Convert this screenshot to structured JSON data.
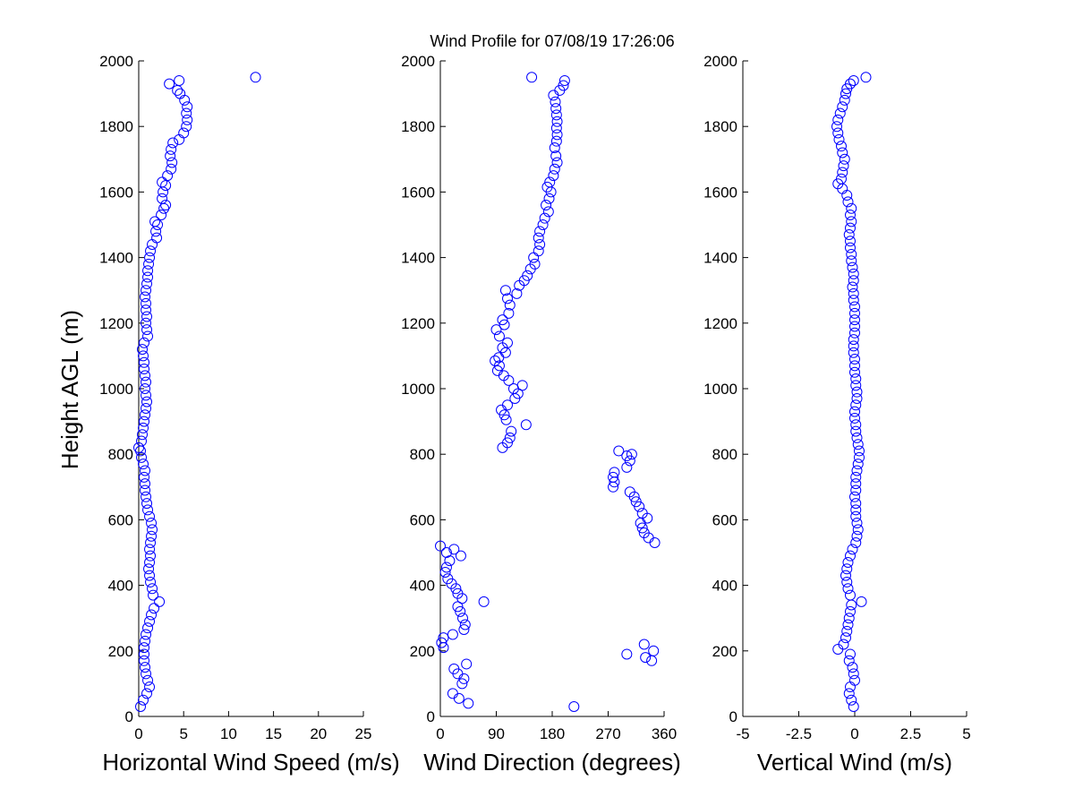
{
  "figure": {
    "title": "Wind Profile for  07/08/19 17:26:06",
    "ylabel": "Height AGL (m)",
    "marker_color": "#0000ff"
  },
  "chart_data": [
    {
      "type": "scatter",
      "xlabel": "Horizontal Wind Speed (m/s)",
      "ylabel": "Height AGL (m)",
      "xlim": [
        0,
        25
      ],
      "ylim": [
        0,
        2000
      ],
      "xticks": [
        0,
        5,
        10,
        15,
        20,
        25
      ],
      "xtick_labels": [
        "0",
        "5",
        "10",
        "15",
        "20",
        "25"
      ],
      "yticks": [
        0,
        200,
        400,
        600,
        800,
        1000,
        1200,
        1400,
        1600,
        1800,
        2000
      ],
      "ytick_labels": [
        "0",
        "200",
        "400",
        "600",
        "800",
        "1000",
        "1200",
        "1400",
        "1600",
        "1800",
        "2000"
      ],
      "points": [
        [
          0.2,
          30
        ],
        [
          0.5,
          50
        ],
        [
          0.9,
          70
        ],
        [
          1.2,
          90
        ],
        [
          1.0,
          110
        ],
        [
          0.8,
          130
        ],
        [
          0.7,
          150
        ],
        [
          0.6,
          170
        ],
        [
          0.6,
          190
        ],
        [
          0.6,
          210
        ],
        [
          0.7,
          230
        ],
        [
          0.8,
          250
        ],
        [
          1.0,
          270
        ],
        [
          1.2,
          290
        ],
        [
          1.4,
          310
        ],
        [
          1.7,
          330
        ],
        [
          2.3,
          350
        ],
        [
          1.6,
          370
        ],
        [
          1.5,
          390
        ],
        [
          1.3,
          410
        ],
        [
          1.2,
          430
        ],
        [
          1.1,
          450
        ],
        [
          1.2,
          470
        ],
        [
          1.3,
          490
        ],
        [
          1.2,
          510
        ],
        [
          1.3,
          530
        ],
        [
          1.4,
          550
        ],
        [
          1.5,
          570
        ],
        [
          1.4,
          590
        ],
        [
          1.2,
          610
        ],
        [
          1.0,
          630
        ],
        [
          0.9,
          650
        ],
        [
          0.8,
          670
        ],
        [
          0.7,
          690
        ],
        [
          0.7,
          710
        ],
        [
          0.6,
          730
        ],
        [
          0.7,
          750
        ],
        [
          0.5,
          770
        ],
        [
          0.3,
          790
        ],
        [
          0.2,
          810
        ],
        [
          0.0,
          820
        ],
        [
          0.3,
          840
        ],
        [
          0.4,
          860
        ],
        [
          0.5,
          880
        ],
        [
          0.6,
          900
        ],
        [
          0.7,
          920
        ],
        [
          0.8,
          940
        ],
        [
          0.9,
          960
        ],
        [
          0.8,
          980
        ],
        [
          0.7,
          1000
        ],
        [
          0.8,
          1020
        ],
        [
          0.7,
          1040
        ],
        [
          0.6,
          1060
        ],
        [
          0.6,
          1080
        ],
        [
          0.5,
          1100
        ],
        [
          0.4,
          1120
        ],
        [
          0.6,
          1140
        ],
        [
          1.0,
          1160
        ],
        [
          0.9,
          1180
        ],
        [
          0.8,
          1200
        ],
        [
          0.9,
          1220
        ],
        [
          0.8,
          1240
        ],
        [
          0.8,
          1260
        ],
        [
          0.7,
          1280
        ],
        [
          0.8,
          1300
        ],
        [
          0.9,
          1320
        ],
        [
          1.0,
          1340
        ],
        [
          1.0,
          1360
        ],
        [
          1.1,
          1380
        ],
        [
          1.2,
          1400
        ],
        [
          1.3,
          1420
        ],
        [
          1.5,
          1440
        ],
        [
          2.0,
          1460
        ],
        [
          1.9,
          1480
        ],
        [
          2.1,
          1500
        ],
        [
          1.8,
          1510
        ],
        [
          2.5,
          1530
        ],
        [
          2.8,
          1550
        ],
        [
          3.0,
          1560
        ],
        [
          2.6,
          1580
        ],
        [
          2.7,
          1600
        ],
        [
          3.0,
          1620
        ],
        [
          2.6,
          1630
        ],
        [
          3.2,
          1650
        ],
        [
          3.6,
          1670
        ],
        [
          3.7,
          1690
        ],
        [
          3.5,
          1710
        ],
        [
          3.6,
          1730
        ],
        [
          3.8,
          1750
        ],
        [
          4.5,
          1760
        ],
        [
          5.0,
          1780
        ],
        [
          5.3,
          1800
        ],
        [
          5.4,
          1820
        ],
        [
          5.3,
          1840
        ],
        [
          5.4,
          1860
        ],
        [
          5.1,
          1880
        ],
        [
          4.6,
          1900
        ],
        [
          4.3,
          1910
        ],
        [
          3.4,
          1930
        ],
        [
          4.5,
          1940
        ],
        [
          13.0,
          1950
        ]
      ]
    },
    {
      "type": "scatter",
      "xlabel": "Wind Direction (degrees)",
      "xlim": [
        0,
        360
      ],
      "ylim": [
        0,
        2000
      ],
      "xticks": [
        0,
        90,
        180,
        270,
        360
      ],
      "xtick_labels": [
        "0",
        "90",
        "180",
        "270",
        "360"
      ],
      "yticks": [
        0,
        200,
        400,
        600,
        800,
        1000,
        1200,
        1400,
        1600,
        1800,
        2000
      ],
      "ytick_labels": [
        "0",
        "200",
        "400",
        "600",
        "800",
        "1000",
        "1200",
        "1400",
        "1600",
        "1800",
        "2000"
      ],
      "points": [
        [
          215,
          30
        ],
        [
          45,
          40
        ],
        [
          30,
          55
        ],
        [
          20,
          70
        ],
        [
          35,
          100
        ],
        [
          38,
          115
        ],
        [
          28,
          130
        ],
        [
          22,
          145
        ],
        [
          42,
          160
        ],
        [
          300,
          190
        ],
        [
          340,
          170
        ],
        [
          343,
          200
        ],
        [
          330,
          180
        ],
        [
          328,
          220
        ],
        [
          5,
          210
        ],
        [
          2,
          225
        ],
        [
          5,
          240
        ],
        [
          20,
          250
        ],
        [
          38,
          265
        ],
        [
          40,
          280
        ],
        [
          36,
          300
        ],
        [
          32,
          320
        ],
        [
          28,
          335
        ],
        [
          70,
          350
        ],
        [
          35,
          360
        ],
        [
          28,
          375
        ],
        [
          25,
          390
        ],
        [
          18,
          405
        ],
        [
          12,
          420
        ],
        [
          8,
          440
        ],
        [
          10,
          455
        ],
        [
          15,
          475
        ],
        [
          33,
          490
        ],
        [
          10,
          500
        ],
        [
          22,
          510
        ],
        [
          0,
          520
        ],
        [
          345,
          530
        ],
        [
          335,
          545
        ],
        [
          328,
          560
        ],
        [
          325,
          575
        ],
        [
          322,
          590
        ],
        [
          333,
          605
        ],
        [
          325,
          620
        ],
        [
          320,
          640
        ],
        [
          315,
          655
        ],
        [
          312,
          670
        ],
        [
          305,
          685
        ],
        [
          278,
          700
        ],
        [
          280,
          715
        ],
        [
          278,
          730
        ],
        [
          280,
          745
        ],
        [
          300,
          760
        ],
        [
          305,
          780
        ],
        [
          300,
          795
        ],
        [
          308,
          800
        ],
        [
          287,
          810
        ],
        [
          100,
          820
        ],
        [
          108,
          835
        ],
        [
          112,
          850
        ],
        [
          114,
          870
        ],
        [
          138,
          890
        ],
        [
          106,
          905
        ],
        [
          103,
          920
        ],
        [
          98,
          935
        ],
        [
          108,
          950
        ],
        [
          120,
          970
        ],
        [
          125,
          985
        ],
        [
          118,
          1000
        ],
        [
          132,
          1010
        ],
        [
          110,
          1025
        ],
        [
          102,
          1040
        ],
        [
          92,
          1055
        ],
        [
          95,
          1070
        ],
        [
          88,
          1085
        ],
        [
          94,
          1095
        ],
        [
          105,
          1110
        ],
        [
          100,
          1125
        ],
        [
          108,
          1140
        ],
        [
          95,
          1160
        ],
        [
          90,
          1180
        ],
        [
          103,
          1195
        ],
        [
          100,
          1210
        ],
        [
          110,
          1230
        ],
        [
          112,
          1255
        ],
        [
          108,
          1275
        ],
        [
          123,
          1290
        ],
        [
          105,
          1300
        ],
        [
          127,
          1315
        ],
        [
          135,
          1330
        ],
        [
          140,
          1345
        ],
        [
          145,
          1365
        ],
        [
          152,
          1380
        ],
        [
          150,
          1400
        ],
        [
          158,
          1420
        ],
        [
          160,
          1440
        ],
        [
          158,
          1460
        ],
        [
          160,
          1480
        ],
        [
          165,
          1500
        ],
        [
          168,
          1520
        ],
        [
          174,
          1540
        ],
        [
          170,
          1560
        ],
        [
          175,
          1580
        ],
        [
          178,
          1600
        ],
        [
          172,
          1615
        ],
        [
          176,
          1630
        ],
        [
          182,
          1650
        ],
        [
          184,
          1670
        ],
        [
          188,
          1690
        ],
        [
          186,
          1710
        ],
        [
          184,
          1735
        ],
        [
          187,
          1755
        ],
        [
          188,
          1775
        ],
        [
          187,
          1795
        ],
        [
          188,
          1815
        ],
        [
          187,
          1835
        ],
        [
          186,
          1855
        ],
        [
          185,
          1875
        ],
        [
          182,
          1895
        ],
        [
          192,
          1910
        ],
        [
          198,
          1925
        ],
        [
          200,
          1940
        ],
        [
          147,
          1950
        ]
      ]
    },
    {
      "type": "scatter",
      "xlabel": "Vertical Wind (m/s)",
      "xlim": [
        -5,
        5
      ],
      "ylim": [
        0,
        2000
      ],
      "xticks": [
        -5,
        -2.5,
        0,
        2.5,
        5
      ],
      "xtick_labels": [
        "-5",
        "-2.5",
        "0",
        "2.5",
        "5"
      ],
      "yticks": [
        0,
        200,
        400,
        600,
        800,
        1000,
        1200,
        1400,
        1600,
        1800,
        2000
      ],
      "ytick_labels": [
        "0",
        "200",
        "400",
        "600",
        "800",
        "1000",
        "1200",
        "1400",
        "1600",
        "1800",
        "2000"
      ],
      "points": [
        [
          -0.05,
          30
        ],
        [
          -0.15,
          50
        ],
        [
          -0.25,
          70
        ],
        [
          -0.2,
          90
        ],
        [
          0.0,
          110
        ],
        [
          -0.05,
          130
        ],
        [
          -0.1,
          150
        ],
        [
          -0.25,
          170
        ],
        [
          -0.2,
          190
        ],
        [
          -0.75,
          205
        ],
        [
          -0.5,
          220
        ],
        [
          -0.4,
          240
        ],
        [
          -0.35,
          260
        ],
        [
          -0.3,
          280
        ],
        [
          -0.25,
          300
        ],
        [
          -0.2,
          320
        ],
        [
          -0.15,
          340
        ],
        [
          0.3,
          350
        ],
        [
          -0.2,
          370
        ],
        [
          -0.3,
          390
        ],
        [
          -0.35,
          410
        ],
        [
          -0.4,
          430
        ],
        [
          -0.35,
          450
        ],
        [
          -0.3,
          470
        ],
        [
          -0.2,
          490
        ],
        [
          -0.1,
          510
        ],
        [
          0.05,
          530
        ],
        [
          0.1,
          550
        ],
        [
          0.15,
          570
        ],
        [
          0.1,
          590
        ],
        [
          0.05,
          610
        ],
        [
          0.05,
          630
        ],
        [
          0.05,
          650
        ],
        [
          0.0,
          670
        ],
        [
          0.05,
          690
        ],
        [
          0.05,
          710
        ],
        [
          0.05,
          730
        ],
        [
          0.1,
          750
        ],
        [
          0.15,
          770
        ],
        [
          0.2,
          790
        ],
        [
          0.2,
          810
        ],
        [
          0.15,
          830
        ],
        [
          0.1,
          850
        ],
        [
          0.05,
          870
        ],
        [
          0.05,
          890
        ],
        [
          0.0,
          910
        ],
        [
          0.0,
          930
        ],
        [
          0.05,
          950
        ],
        [
          0.1,
          970
        ],
        [
          0.1,
          990
        ],
        [
          0.05,
          1010
        ],
        [
          0.05,
          1030
        ],
        [
          0.0,
          1050
        ],
        [
          0.0,
          1070
        ],
        [
          0.0,
          1090
        ],
        [
          -0.05,
          1110
        ],
        [
          -0.05,
          1130
        ],
        [
          -0.05,
          1150
        ],
        [
          0.0,
          1170
        ],
        [
          0.0,
          1190
        ],
        [
          0.0,
          1210
        ],
        [
          0.0,
          1230
        ],
        [
          0.0,
          1250
        ],
        [
          -0.05,
          1270
        ],
        [
          -0.05,
          1290
        ],
        [
          -0.1,
          1310
        ],
        [
          -0.05,
          1330
        ],
        [
          -0.05,
          1350
        ],
        [
          -0.1,
          1370
        ],
        [
          -0.15,
          1390
        ],
        [
          -0.15,
          1410
        ],
        [
          -0.2,
          1430
        ],
        [
          -0.2,
          1450
        ],
        [
          -0.25,
          1470
        ],
        [
          -0.2,
          1490
        ],
        [
          -0.15,
          1510
        ],
        [
          -0.2,
          1530
        ],
        [
          -0.15,
          1550
        ],
        [
          -0.3,
          1570
        ],
        [
          -0.35,
          1590
        ],
        [
          -0.55,
          1610
        ],
        [
          -0.75,
          1625
        ],
        [
          -0.6,
          1640
        ],
        [
          -0.55,
          1660
        ],
        [
          -0.5,
          1680
        ],
        [
          -0.45,
          1700
        ],
        [
          -0.55,
          1720
        ],
        [
          -0.6,
          1740
        ],
        [
          -0.7,
          1760
        ],
        [
          -0.75,
          1780
        ],
        [
          -0.8,
          1800
        ],
        [
          -0.75,
          1820
        ],
        [
          -0.65,
          1840
        ],
        [
          -0.55,
          1860
        ],
        [
          -0.45,
          1880
        ],
        [
          -0.4,
          1900
        ],
        [
          -0.35,
          1915
        ],
        [
          -0.2,
          1930
        ],
        [
          -0.05,
          1940
        ],
        [
          0.5,
          1950
        ]
      ]
    }
  ]
}
